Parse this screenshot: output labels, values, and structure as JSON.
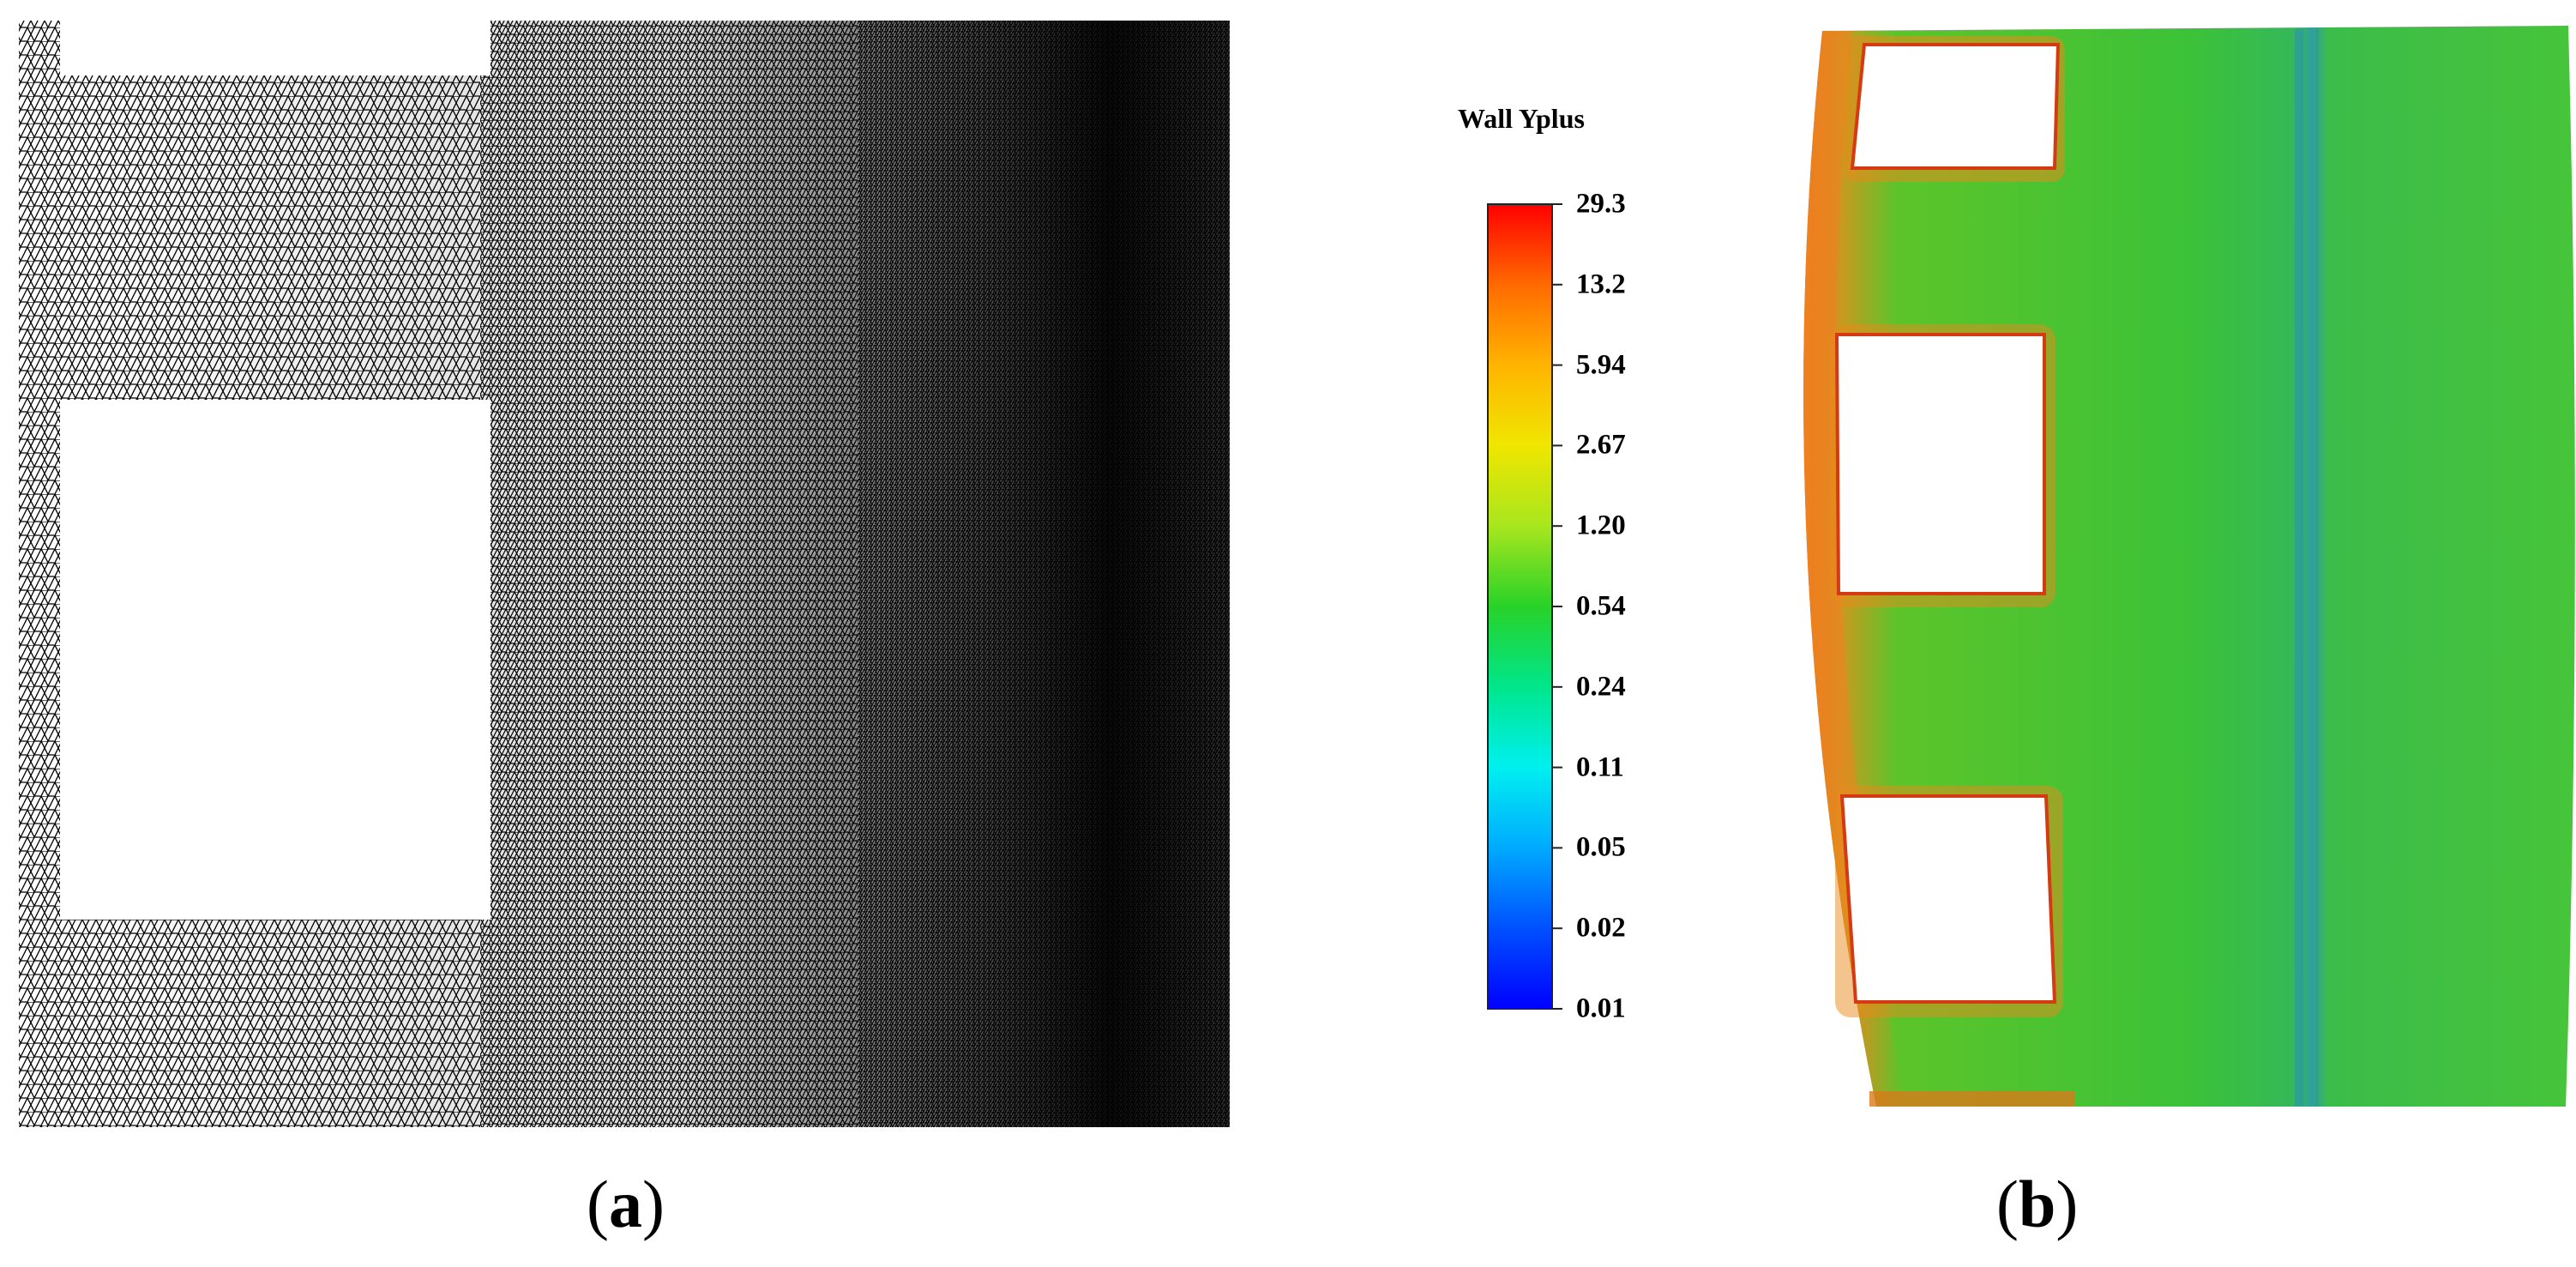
{
  "panel_a": {
    "caption_letter": "a"
  },
  "panel_b": {
    "caption_letter": "b",
    "legend": {
      "title": "Wall Yplus",
      "ticks": [
        "29.3",
        "13.2",
        "5.94",
        "2.67",
        "1.20",
        "0.54",
        "0.24",
        "0.11",
        "0.05",
        "0.02",
        "0.01"
      ],
      "colormap": [
        "#ff0000",
        "#ff6a00",
        "#ffb400",
        "#f0e600",
        "#a8e61e",
        "#28d228",
        "#00e68c",
        "#00f0f0",
        "#00aaff",
        "#0050ff",
        "#0000ff"
      ]
    }
  }
}
